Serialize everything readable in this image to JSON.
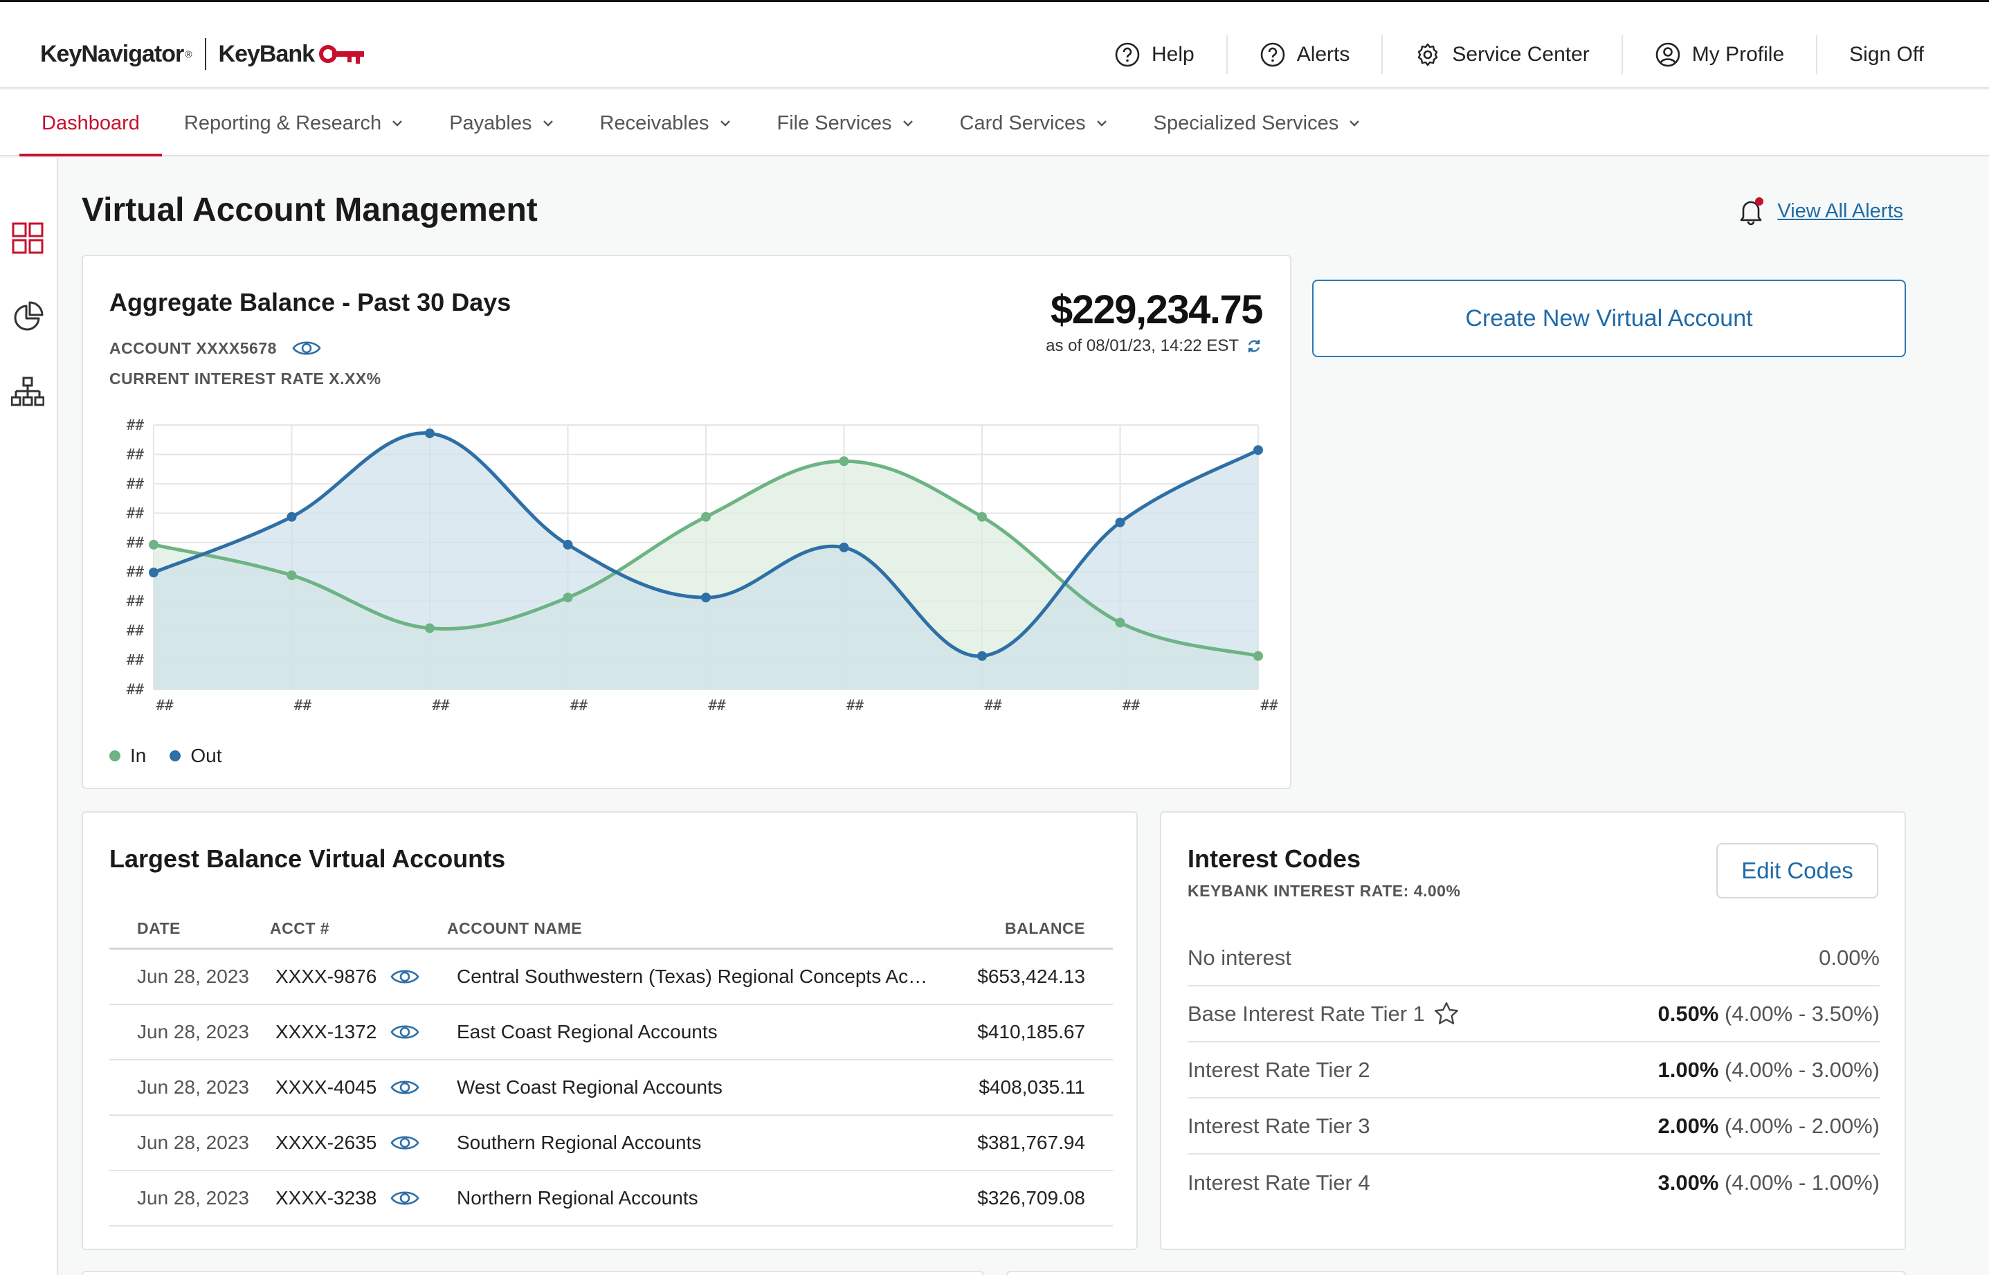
{
  "header": {
    "brand_primary": "KeyNavigator",
    "brand_reg": "®",
    "brand_secondary": "KeyBank",
    "nav": [
      {
        "label": "Help",
        "icon": "help-circle-icon"
      },
      {
        "label": "Alerts",
        "icon": "alert-circle-icon"
      },
      {
        "label": "Service Center",
        "icon": "gear-icon"
      },
      {
        "label": "My Profile",
        "icon": "user-circle-icon"
      },
      {
        "label": "Sign Off",
        "icon": ""
      }
    ]
  },
  "mainnav": {
    "items": [
      {
        "label": "Dashboard",
        "active": true
      },
      {
        "label": "Reporting & Research"
      },
      {
        "label": "Payables"
      },
      {
        "label": "Receivables"
      },
      {
        "label": "File Services"
      },
      {
        "label": "Card Services"
      },
      {
        "label": "Specialized Services"
      }
    ]
  },
  "rail": {
    "icons": [
      "dashboard-grid-icon",
      "pie-chart-icon",
      "org-chart-icon"
    ]
  },
  "page": {
    "title": "Virtual Account Management",
    "view_alerts": "View All Alerts"
  },
  "aggregate": {
    "title": "Aggregate Balance - Past 30 Days",
    "account": "ACCOUNT XXXX5678",
    "rate": "CURRENT INTEREST RATE X.XX%",
    "amount": "$229,234.75",
    "as_of": "as of 08/01/23, 14:22 EST"
  },
  "chart_data": {
    "type": "area",
    "x_tick_labels": [
      "##",
      "##",
      "##",
      "##",
      "##",
      "##",
      "##",
      "##",
      "##"
    ],
    "y_tick_labels": [
      "##",
      "##",
      "##",
      "##",
      "##",
      "##",
      "##",
      "##",
      "##",
      "##"
    ],
    "ylim": [
      0,
      9.5
    ],
    "grid": true,
    "legend_position": "bottom-left",
    "series": [
      {
        "name": "In",
        "color": "#6db384",
        "fill": "#dcedde",
        "values": [
          5.2,
          4.1,
          2.2,
          3.3,
          6.2,
          8.2,
          6.2,
          2.4,
          1.2
        ]
      },
      {
        "name": "Out",
        "color": "#2e6fa6",
        "fill": "#cfe0ea",
        "values": [
          4.2,
          6.2,
          9.2,
          5.2,
          3.3,
          5.1,
          1.2,
          6.0,
          8.6
        ]
      }
    ]
  },
  "create_button": "Create New Virtual Account",
  "largest": {
    "title": "Largest Balance Virtual Accounts",
    "columns": {
      "date": "DATE",
      "acct": "ACCT #",
      "name": "ACCOUNT NAME",
      "balance": "BALANCE"
    },
    "rows": [
      {
        "date": "Jun 28, 2023",
        "acct": "XXXX-9876",
        "name": "Central Southwestern (Texas) Regional Concepts Accounts",
        "balance": "$653,424.13"
      },
      {
        "date": "Jun 28, 2023",
        "acct": "XXXX-1372",
        "name": "East Coast Regional Accounts",
        "balance": "$410,185.67"
      },
      {
        "date": "Jun 28, 2023",
        "acct": "XXXX-4045",
        "name": "West Coast Regional Accounts",
        "balance": "$408,035.11"
      },
      {
        "date": "Jun 28, 2023",
        "acct": "XXXX-2635",
        "name": "Southern Regional Accounts",
        "balance": "$381,767.94"
      },
      {
        "date": "Jun 28, 2023",
        "acct": "XXXX-3238",
        "name": "Northern Regional Accounts",
        "balance": "$326,709.08"
      }
    ]
  },
  "interest": {
    "title": "Interest Codes",
    "subtitle": "KEYBANK INTEREST RATE: 4.00%",
    "edit_button": "Edit Codes",
    "rows": [
      {
        "name": "No interest",
        "rate": "",
        "range": "0.00%"
      },
      {
        "name": "Base Interest Rate Tier 1",
        "rate": "0.50%",
        "range": "(4.00% - 3.50%)",
        "starred": true
      },
      {
        "name": "Interest Rate Tier 2",
        "rate": "1.00%",
        "range": "(4.00% - 3.00%)"
      },
      {
        "name": "Interest Rate Tier 3",
        "rate": "2.00%",
        "range": "(4.00% - 2.00%)"
      },
      {
        "name": "Interest Rate Tier 4",
        "rate": "3.00%",
        "range": "(4.00% - 1.00%)"
      }
    ]
  },
  "colors": {
    "brand_red": "#c8102e",
    "link_blue": "#1e6aa8",
    "in_green": "#6db384",
    "out_blue": "#2e6fa6"
  }
}
